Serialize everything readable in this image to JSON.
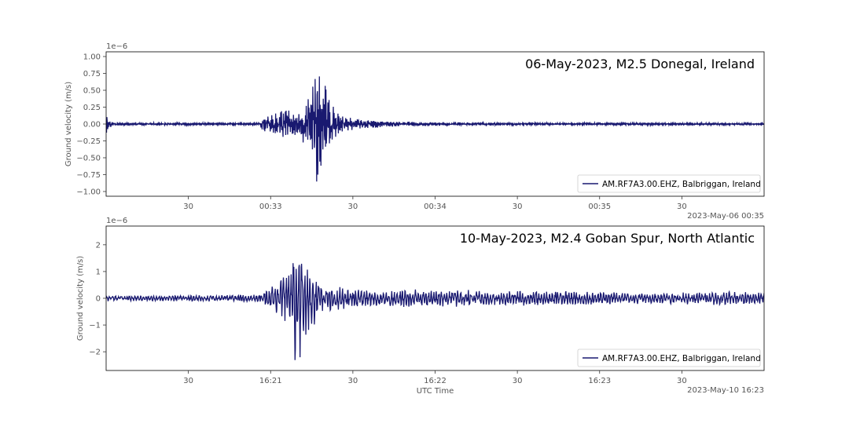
{
  "chart_data": [
    {
      "type": "line",
      "title": "06-May-2023, M2.5 Donegal, Ireland",
      "ylabel": "Ground velocity (m/s)",
      "y_scale_label": "1e−6",
      "offset_label": "2023-May-06 00:35",
      "xlabel": "",
      "ylim": [
        -1.07,
        1.07
      ],
      "yticks": [
        1.0,
        0.75,
        0.5,
        0.25,
        0.0,
        -0.25,
        -0.5,
        -0.75,
        -1.0
      ],
      "ytick_labels": [
        "1.00",
        "0.75",
        "0.50",
        "0.25",
        "0.00",
        "−0.25",
        "−0.50",
        "−0.75",
        "−1.00"
      ],
      "xlim_seconds": [
        0,
        240
      ],
      "xticks_seconds": [
        30,
        60,
        90,
        120,
        150,
        180,
        210
      ],
      "xtick_labels": [
        "30",
        "00:33",
        "30",
        "00:34",
        "30",
        "00:35",
        "30"
      ],
      "legend": "AM.RF7A3.00.EHZ, Balbriggan, Ireland",
      "legend_loc": "lower right",
      "color": "#191970",
      "series": [
        {
          "name": "AM.RF7A3.00.EHZ, Balbriggan, Ireland",
          "envelope_seconds": [
            0,
            1,
            2,
            20,
            56,
            57,
            60,
            65,
            70,
            75,
            76,
            77,
            77.5,
            78,
            79,
            80,
            82,
            85,
            90,
            95,
            100,
            110,
            130,
            160,
            200,
            240
          ],
          "envelope_amplitude": [
            0.15,
            0.06,
            0.03,
            0.02,
            0.02,
            0.1,
            0.15,
            0.22,
            0.18,
            0.5,
            0.85,
            0.95,
            0.98,
            0.7,
            0.55,
            0.62,
            0.35,
            0.15,
            0.1,
            0.07,
            0.05,
            0.035,
            0.025,
            0.02,
            0.02,
            0.015
          ]
        }
      ]
    },
    {
      "type": "line",
      "title": "10-May-2023, M2.4 Goban Spur, North Atlantic",
      "ylabel": "Ground velocity (m/s)",
      "y_scale_label": "1e−6",
      "offset_label": "2023-May-10 16:23",
      "xlabel": "UTC Time",
      "ylim": [
        -2.7,
        2.7
      ],
      "yticks": [
        2,
        1,
        0,
        -1,
        -2
      ],
      "ytick_labels": [
        "2",
        "1",
        "0",
        "−1",
        "−2"
      ],
      "xlim_seconds": [
        0,
        240
      ],
      "xticks_seconds": [
        30,
        60,
        90,
        120,
        150,
        180,
        210
      ],
      "xtick_labels": [
        "30",
        "16:21",
        "30",
        "16:22",
        "30",
        "16:23",
        "30"
      ],
      "legend": "AM.RF7A3.00.EHZ, Balbriggan, Ireland",
      "legend_loc": "lower right",
      "color": "#191970",
      "series": [
        {
          "name": "AM.RF7A3.00.EHZ, Balbriggan, Ireland",
          "envelope_seconds": [
            0,
            1,
            5,
            40,
            55,
            58,
            62,
            65,
            67,
            69,
            71,
            72,
            74,
            78,
            80,
            85,
            90,
            100,
            110,
            120,
            130,
            140,
            160,
            180,
            200,
            220,
            240
          ],
          "envelope_amplitude": [
            0.2,
            0.08,
            0.1,
            0.12,
            0.15,
            0.3,
            0.6,
            0.9,
            1.1,
            2.5,
            2.4,
            1.5,
            1.3,
            0.8,
            0.5,
            0.45,
            0.35,
            0.3,
            0.35,
            0.3,
            0.35,
            0.25,
            0.3,
            0.25,
            0.2,
            0.25,
            0.25
          ]
        }
      ]
    }
  ]
}
